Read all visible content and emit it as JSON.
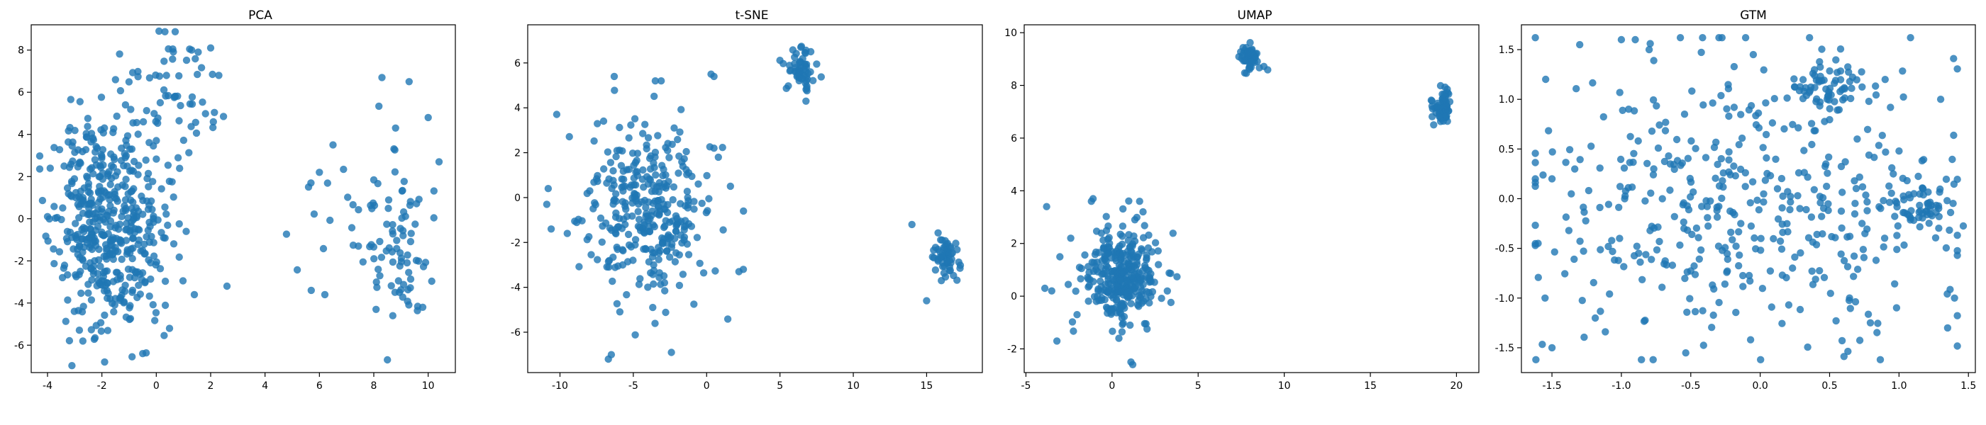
{
  "figure": {
    "point_color": "#1f77b4"
  },
  "chart_data": [
    {
      "type": "scatter",
      "title": "PCA",
      "xlabel": "",
      "ylabel": "",
      "xlim": [
        -4.6,
        11.0
      ],
      "ylim": [
        -7.3,
        9.2
      ],
      "xticks": [
        -4,
        -2,
        0,
        2,
        4,
        6,
        8,
        10
      ],
      "yticks": [
        -6,
        -4,
        -2,
        0,
        2,
        4,
        6,
        8
      ],
      "grid": false,
      "clusters": [
        {
          "cx": -1.7,
          "cy": -0.8,
          "sx": 1.0,
          "sy": 2.2,
          "n": 420,
          "seed": 11
        },
        {
          "cx": 0.4,
          "cy": 5.8,
          "sx": 0.9,
          "sy": 1.4,
          "n": 60,
          "seed": 12
        },
        {
          "cx": -2.6,
          "cy": 2.8,
          "sx": 0.8,
          "sy": 1.3,
          "n": 60,
          "seed": 13
        },
        {
          "cx": 8.9,
          "cy": -1.3,
          "sx": 0.6,
          "sy": 2.0,
          "n": 75,
          "seed": 14
        },
        {
          "cx": 7.0,
          "cy": 0.5,
          "sx": 1.3,
          "sy": 2.3,
          "n": 18,
          "seed": 15
        }
      ],
      "points": [
        [
          0.1,
          8.9
        ],
        [
          2.0,
          8.1
        ],
        [
          1.3,
          8.0
        ],
        [
          2.3,
          6.8
        ],
        [
          2.1,
          4.6
        ],
        [
          -1.5,
          6.6
        ],
        [
          -1.9,
          -6.8
        ],
        [
          -2.7,
          -5.8
        ],
        [
          8.3,
          6.7
        ],
        [
          9.3,
          6.5
        ],
        [
          10.0,
          4.8
        ],
        [
          10.4,
          2.7
        ],
        [
          8.8,
          4.3
        ],
        [
          5.6,
          1.5
        ],
        [
          6.0,
          2.2
        ],
        [
          6.5,
          3.5
        ],
        [
          5.7,
          -3.4
        ],
        [
          6.2,
          -3.6
        ],
        [
          9.8,
          -4.2
        ],
        [
          8.7,
          -4.6
        ],
        [
          2.6,
          -3.2
        ],
        [
          1.4,
          -3.6
        ],
        [
          -3.9,
          2.4
        ],
        [
          -4.0,
          0.1
        ]
      ]
    },
    {
      "type": "scatter",
      "title": "t-SNE",
      "xlabel": "",
      "ylabel": "",
      "xlim": [
        -12.2,
        18.8
      ],
      "ylim": [
        -7.8,
        7.7
      ],
      "xticks": [
        -10,
        -5,
        0,
        5,
        10,
        15
      ],
      "yticks": [
        -6,
        -4,
        -2,
        0,
        2,
        4,
        6
      ],
      "grid": false,
      "clusters": [
        {
          "cx": -4.0,
          "cy": -0.5,
          "sx": 2.2,
          "sy": 2.0,
          "n": 330,
          "seed": 21
        },
        {
          "cx": 6.4,
          "cy": 5.8,
          "sx": 0.45,
          "sy": 0.45,
          "n": 60,
          "seed": 22
        },
        {
          "cx": 16.2,
          "cy": -2.7,
          "sx": 0.5,
          "sy": 0.55,
          "n": 55,
          "seed": 23
        }
      ],
      "points": [
        [
          -10.8,
          0.4
        ],
        [
          -10.6,
          -1.4
        ],
        [
          -10.9,
          -0.3
        ],
        [
          -9.5,
          -1.6
        ],
        [
          -6.7,
          -7.2
        ],
        [
          -6.5,
          -7.0
        ],
        [
          -2.4,
          -6.9
        ],
        [
          -6.3,
          5.4
        ],
        [
          -3.1,
          5.2
        ],
        [
          -3.5,
          5.2
        ],
        [
          0.3,
          5.5
        ],
        [
          0.5,
          5.4
        ],
        [
          2.2,
          -3.3
        ],
        [
          2.5,
          -3.2
        ],
        [
          14.0,
          -1.2
        ],
        [
          15.0,
          -4.6
        ],
        [
          0.8,
          1.8
        ],
        [
          0.5,
          2.2
        ]
      ]
    },
    {
      "type": "scatter",
      "title": "UMAP",
      "xlabel": "",
      "ylabel": "",
      "xlim": [
        -5.1,
        21.3
      ],
      "ylim": [
        -2.9,
        10.3
      ],
      "xticks": [
        -5,
        0,
        5,
        10,
        15,
        20
      ],
      "yticks": [
        -2,
        0,
        2,
        4,
        6,
        8,
        10
      ],
      "grid": false,
      "clusters": [
        {
          "cx": 0.6,
          "cy": 0.8,
          "sx": 1.1,
          "sy": 0.9,
          "n": 330,
          "seed": 31
        },
        {
          "cx": 8.0,
          "cy": 9.1,
          "sx": 0.28,
          "sy": 0.22,
          "n": 60,
          "seed": 32
        },
        {
          "cx": 19.2,
          "cy": 7.2,
          "sx": 0.3,
          "sy": 0.3,
          "n": 60,
          "seed": 33
        }
      ],
      "points": [
        [
          -3.8,
          3.4
        ],
        [
          -3.9,
          0.3
        ],
        [
          -3.5,
          0.2
        ],
        [
          -3.2,
          -1.7
        ],
        [
          -1.2,
          3.6
        ],
        [
          -1.1,
          3.7
        ],
        [
          1.2,
          -2.6
        ],
        [
          1.1,
          -2.5
        ],
        [
          0.4,
          -1.6
        ],
        [
          1.8,
          3.2
        ],
        [
          1.6,
          3.6
        ],
        [
          -2.4,
          2.2
        ]
      ]
    },
    {
      "type": "scatter",
      "title": "GTM",
      "xlabel": "",
      "ylabel": "",
      "xlim": [
        -1.72,
        1.55
      ],
      "ylim": [
        -1.75,
        1.75
      ],
      "xticks": [
        -1.5,
        -1.0,
        -0.5,
        0.0,
        0.5,
        1.0,
        1.5
      ],
      "yticks": [
        -1.5,
        -1.0,
        -0.5,
        0.0,
        0.5,
        1.0,
        1.5
      ],
      "grid": false,
      "clusters": [
        {
          "cx": -0.1,
          "cy": 0.0,
          "sx": 0.75,
          "sy": 0.8,
          "n": 430,
          "seed": 41,
          "clip": 1.62
        },
        {
          "cx": 0.47,
          "cy": 1.15,
          "sx": 0.15,
          "sy": 0.12,
          "n": 60,
          "seed": 42
        },
        {
          "cx": 1.15,
          "cy": -0.1,
          "sx": 0.14,
          "sy": 0.14,
          "n": 55,
          "seed": 43
        }
      ],
      "points": [
        [
          -1.0,
          1.6
        ],
        [
          -0.9,
          1.6
        ],
        [
          1.0,
          0.48
        ],
        [
          1.4,
          -1.0
        ],
        [
          1.35,
          -1.3
        ],
        [
          -1.5,
          -1.5
        ],
        [
          -1.6,
          -0.45
        ],
        [
          -1.5,
          0.2
        ],
        [
          -1.3,
          1.55
        ],
        [
          -0.8,
          1.5
        ],
        [
          -0.05,
          1.45
        ],
        [
          0.9,
          1.2
        ],
        [
          1.3,
          1.0
        ],
        [
          -1.55,
          -1.0
        ]
      ]
    }
  ]
}
